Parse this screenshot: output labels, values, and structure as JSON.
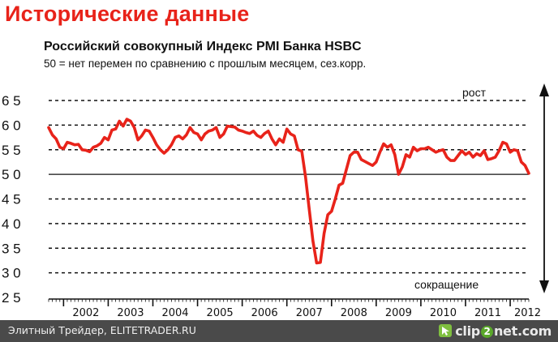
{
  "page": {
    "heading": "Исторические данные",
    "footer_text": "Элитный Трейдер, ELITETRADER.RU",
    "logo": {
      "prefix": "clip",
      "badge": "2",
      "suffix": "net.com",
      "icon": "cursor-arrow-icon"
    }
  },
  "colors": {
    "heading": "#e8231a",
    "series": "#e8231a",
    "grid": "#111111",
    "footer_bg": "#4a4a4a"
  },
  "chart_data": {
    "type": "line",
    "title": "Российский совокупный Индекс PMI Банка HSBC",
    "subtitle": "50 = нет перемен по сравнению с прошлым месяцем, сез.корр.",
    "ylim": [
      25,
      65
    ],
    "yticks": [
      "6 5",
      "6 0",
      "5 5",
      "5 0",
      "4 5",
      "4 0",
      "3 5",
      "3 0",
      "2 5"
    ],
    "ytick_values": [
      65,
      60,
      55,
      50,
      45,
      40,
      35,
      30,
      25
    ],
    "xticks": [
      "2002",
      "2003",
      "2004",
      "2005",
      "2006",
      "2007",
      "2008",
      "2009",
      "2010",
      "2011",
      "2012"
    ],
    "grid": "dashed horizontal",
    "reference_line": 50,
    "annotations": {
      "up": "рост",
      "down": "сокращение"
    },
    "series": [
      {
        "start": "2001-09",
        "frequency": "monthly",
        "values": [
          59.5,
          58.0,
          57.2,
          55.5,
          55.2,
          56.5,
          56.3,
          56.0,
          56.1,
          55.0,
          54.9,
          54.6,
          55.5,
          55.8,
          56.3,
          57.5,
          57.0,
          59.0,
          59.2,
          60.8,
          59.8,
          61.2,
          60.8,
          59.5,
          57.0,
          57.8,
          59.0,
          58.8,
          57.5,
          56.0,
          55.0,
          54.3,
          55.0,
          56.0,
          57.5,
          57.8,
          57.2,
          58.0,
          59.5,
          58.5,
          58.2,
          57.0,
          58.2,
          58.8,
          59.0,
          59.5,
          57.5,
          58.2,
          59.8,
          59.7,
          59.6,
          59.0,
          58.8,
          58.5,
          58.3,
          58.8,
          57.9,
          57.5,
          58.3,
          58.8,
          57.2,
          56.0,
          57.2,
          56.5,
          59.2,
          58.2,
          57.8,
          55.0,
          54.7,
          49.5,
          43.0,
          36.5,
          32.0,
          32.1,
          38.0,
          41.8,
          42.5,
          45.0,
          47.8,
          48.2,
          51.0,
          53.8,
          54.5,
          54.5,
          53.0,
          52.6,
          52.2,
          51.8,
          52.5,
          54.5,
          56.2,
          55.5,
          56.0,
          54.0,
          50.0,
          51.5,
          54.0,
          53.5,
          55.5,
          54.8,
          55.2,
          55.2,
          55.5,
          55.0,
          54.5,
          54.8,
          55.0,
          53.5,
          52.8,
          52.8,
          53.8,
          54.8,
          54.0,
          54.5,
          53.5,
          54.2,
          53.8,
          54.8,
          53.0,
          53.2,
          53.5,
          54.8,
          56.5,
          56.2,
          54.5,
          55.0,
          54.8,
          52.5,
          51.8,
          50.2
        ]
      }
    ]
  }
}
